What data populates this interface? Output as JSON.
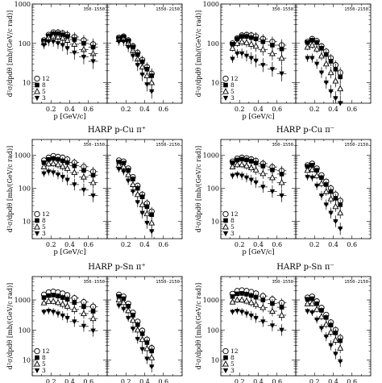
{
  "legend_labels": [
    "12",
    "8",
    "5",
    "3"
  ],
  "legend_markers": [
    "open-circle",
    "filled-square",
    "open-triangle",
    "filled-down-triangle"
  ],
  "chart_data": [
    {
      "type": "scatter",
      "title": "",
      "ylabel": "d²σ/dpdθ [mb/(GeV/c rad)]",
      "xlabel": "p [GeV/c]",
      "log_y": true,
      "ylim": [
        3,
        1000
      ],
      "xlim": [
        0,
        0.8
      ],
      "left_range": "350-1550",
      "right_range": "1550-2150",
      "left_x": [
        0.125,
        0.175,
        0.225,
        0.275,
        0.325,
        0.375,
        0.45,
        0.55,
        0.65
      ],
      "left_series": [
        [
          120,
          165,
          190,
          190,
          180,
          165,
          145,
          120,
          95
        ],
        [
          115,
          155,
          175,
          175,
          165,
          150,
          125,
          100,
          80
        ],
        [
          105,
          140,
          150,
          145,
          135,
          120,
          95,
          70,
          55
        ],
        [
          90,
          110,
          110,
          100,
          90,
          75,
          58,
          45,
          35
        ]
      ],
      "right_x": [
        0.125,
        0.175,
        0.225,
        0.275,
        0.325,
        0.375,
        0.425,
        0.475
      ],
      "right_series": [
        [
          140,
          150,
          120,
          85,
          58,
          38,
          25,
          17
        ],
        [
          135,
          145,
          115,
          80,
          52,
          34,
          22,
          15
        ],
        [
          125,
          130,
          100,
          65,
          40,
          25,
          15,
          10
        ],
        [
          110,
          110,
          80,
          48,
          28,
          16,
          9,
          6
        ]
      ]
    },
    {
      "type": "scatter",
      "title": "",
      "ylabel": "d²σ/dpdθ [mb/(GeV/c rad)]",
      "xlabel": "p [GeV/c]",
      "log_y": true,
      "ylim": [
        3,
        1000
      ],
      "xlim": [
        0,
        0.8
      ],
      "left_range": "350-1550",
      "right_range": "1550-2150",
      "left_x": [
        0.125,
        0.175,
        0.225,
        0.275,
        0.325,
        0.375,
        0.45,
        0.55,
        0.65
      ],
      "left_series": [
        [
          100,
          135,
          160,
          165,
          160,
          150,
          130,
          110,
          90
        ],
        [
          95,
          130,
          150,
          150,
          140,
          130,
          110,
          90,
          72
        ],
        [
          75,
          100,
          110,
          105,
          95,
          85,
          70,
          55,
          42
        ],
        [
          40,
          55,
          55,
          48,
          42,
          36,
          28,
          22,
          17
        ]
      ],
      "right_x": [
        0.125,
        0.175,
        0.225,
        0.275,
        0.325,
        0.375,
        0.425,
        0.475
      ],
      "right_series": [
        [
          110,
          130,
          115,
          85,
          62,
          42,
          28,
          18
        ],
        [
          105,
          120,
          105,
          75,
          52,
          35,
          22,
          14
        ],
        [
          80,
          90,
          72,
          48,
          30,
          18,
          11,
          7
        ],
        [
          42,
          42,
          30,
          18,
          10,
          6,
          4,
          3
        ]
      ]
    },
    {
      "type": "scatter",
      "title": "HARP p-Cu π⁺",
      "ylabel": "d²σ/dpdθ [mb/(GeV/c rad)]",
      "xlabel": "p [GeV/c]",
      "log_y": true,
      "ylim": [
        3,
        3000
      ],
      "xlim": [
        0,
        0.8
      ],
      "left_range": "350-1550",
      "right_range": "1550-2150",
      "left_x": [
        0.125,
        0.175,
        0.225,
        0.275,
        0.325,
        0.375,
        0.45,
        0.55,
        0.65
      ],
      "left_series": [
        [
          700,
          850,
          950,
          900,
          850,
          750,
          600,
          450,
          320
        ],
        [
          600,
          750,
          800,
          750,
          680,
          600,
          480,
          350,
          250
        ],
        [
          450,
          550,
          560,
          520,
          460,
          400,
          300,
          220,
          150
        ],
        [
          280,
          320,
          300,
          260,
          220,
          180,
          130,
          90,
          60
        ]
      ],
      "right_x": [
        0.125,
        0.175,
        0.225,
        0.275,
        0.325,
        0.375,
        0.425,
        0.475
      ],
      "right_series": [
        [
          700,
          650,
          400,
          220,
          120,
          65,
          35,
          20
        ],
        [
          620,
          580,
          350,
          190,
          100,
          55,
          28,
          16
        ],
        [
          500,
          450,
          260,
          130,
          65,
          32,
          17,
          9
        ],
        [
          380,
          320,
          170,
          80,
          38,
          18,
          9,
          5
        ]
      ]
    },
    {
      "type": "scatter",
      "title": "HARP p-Cu π⁻",
      "ylabel": "d²σ/dpdθ [mb/(GeV/c rad)]",
      "xlabel": "p [GeV/c]",
      "log_y": true,
      "ylim": [
        3,
        3000
      ],
      "xlim": [
        0,
        0.8
      ],
      "left_range": "350-1550",
      "right_range": "1550-2150",
      "left_x": [
        0.125,
        0.175,
        0.225,
        0.275,
        0.325,
        0.375,
        0.45,
        0.55,
        0.65
      ],
      "left_series": [
        [
          650,
          800,
          850,
          820,
          760,
          680,
          560,
          440,
          340
        ],
        [
          600,
          720,
          760,
          720,
          660,
          580,
          470,
          360,
          270
        ],
        [
          450,
          520,
          520,
          480,
          420,
          360,
          280,
          210,
          150
        ],
        [
          240,
          260,
          240,
          210,
          180,
          150,
          110,
          80,
          60
        ]
      ],
      "right_x": [
        0.125,
        0.175,
        0.225,
        0.275,
        0.325,
        0.375,
        0.425,
        0.475
      ],
      "right_series": [
        [
          500,
          560,
          400,
          250,
          160,
          100,
          65,
          42
        ],
        [
          460,
          500,
          350,
          210,
          130,
          80,
          50,
          32
        ],
        [
          350,
          370,
          240,
          140,
          80,
          48,
          28,
          18
        ],
        [
          220,
          210,
          120,
          60,
          32,
          18,
          10,
          6
        ]
      ]
    },
    {
      "type": "scatter",
      "title": "HARP p-Sn π⁺",
      "ylabel": "d²σ/dpdθ [mb/(GeV/c rad)]",
      "xlabel": "p [GeV/c]",
      "log_y": true,
      "ylim": [
        3,
        6000
      ],
      "xlim": [
        0,
        0.8
      ],
      "left_range": "350-1550",
      "right_range": "1550-2150",
      "left_x": [
        0.125,
        0.175,
        0.225,
        0.275,
        0.325,
        0.375,
        0.45,
        0.55,
        0.65
      ],
      "left_series": [
        [
          1500,
          1800,
          1900,
          1800,
          1650,
          1450,
          1150,
          850,
          600
        ],
        [
          1200,
          1400,
          1450,
          1350,
          1200,
          1050,
          820,
          600,
          420
        ],
        [
          800,
          900,
          900,
          820,
          720,
          620,
          480,
          350,
          240
        ],
        [
          400,
          430,
          400,
          350,
          300,
          250,
          190,
          135,
          95
        ]
      ],
      "right_x": [
        0.125,
        0.175,
        0.225,
        0.275,
        0.325,
        0.375,
        0.425,
        0.475
      ],
      "right_series": [
        [
          1500,
          1300,
          750,
          380,
          190,
          95,
          48,
          25
        ],
        [
          1300,
          1100,
          620,
          310,
          150,
          75,
          38,
          20
        ],
        [
          1000,
          820,
          440,
          210,
          100,
          48,
          24,
          12
        ],
        [
          650,
          500,
          250,
          110,
          50,
          23,
          11,
          6
        ]
      ]
    },
    {
      "type": "scatter",
      "title": "HARP p-Sn π⁻",
      "ylabel": "d²σ/dpdθ [mb/(GeV/c rad)]",
      "xlabel": "p [GeV/c]",
      "log_y": true,
      "ylim": [
        3,
        6000
      ],
      "xlim": [
        0,
        0.8
      ],
      "left_range": "350-1550",
      "right_range": "1550-2150",
      "left_x": [
        0.125,
        0.175,
        0.225,
        0.275,
        0.325,
        0.375,
        0.45,
        0.55,
        0.65
      ],
      "left_series": [
        [
          1600,
          2000,
          2100,
          2000,
          1850,
          1650,
          1350,
          1050,
          800
        ],
        [
          1300,
          1600,
          1650,
          1550,
          1400,
          1230,
          1000,
          760,
          570
        ],
        [
          850,
          1000,
          1000,
          920,
          820,
          710,
          560,
          420,
          310
        ],
        [
          400,
          430,
          400,
          350,
          300,
          250,
          190,
          140,
          100
        ]
      ],
      "right_x": [
        0.125,
        0.175,
        0.225,
        0.275,
        0.325,
        0.375,
        0.425,
        0.475
      ],
      "right_series": [
        [
          1200,
          1300,
          900,
          550,
          320,
          180,
          100,
          55
        ],
        [
          1050,
          1100,
          750,
          450,
          260,
          145,
          80,
          44
        ],
        [
          750,
          760,
          490,
          280,
          155,
          85,
          46,
          25
        ],
        [
          420,
          380,
          220,
          115,
          60,
          31,
          16,
          9
        ]
      ]
    }
  ]
}
